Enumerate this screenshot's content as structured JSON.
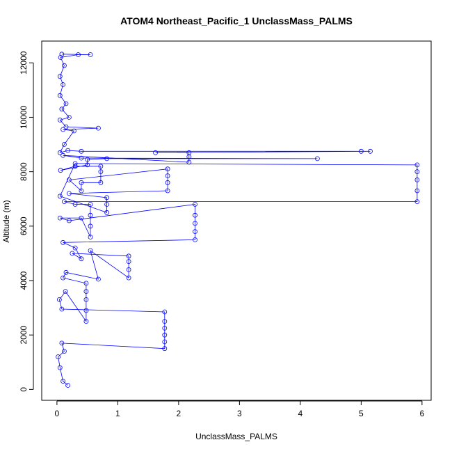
{
  "chart_data": {
    "type": "scatter",
    "title": "ATOM4 Northeast_Pacific_1 UnclassMass_PALMS",
    "xlabel": "UnclassMass_PALMS",
    "ylabel": "Altitude (m)",
    "xlim": [
      -0.25,
      6.15
    ],
    "ylim": [
      -400,
      12800
    ],
    "x_ticks": [
      0,
      1,
      2,
      3,
      4,
      5,
      6
    ],
    "y_ticks": [
      0,
      2000,
      4000,
      6000,
      8000,
      10000,
      12000
    ],
    "grid": false,
    "legend": "none",
    "marker": "open-circle",
    "connected": true,
    "color": "#0000ff",
    "series": [
      {
        "points": [
          [
            0.18,
            150
          ],
          [
            0.1,
            300
          ],
          [
            0.05,
            800
          ],
          [
            0.02,
            1200
          ],
          [
            0.12,
            1400
          ],
          [
            0.08,
            1700
          ],
          [
            1.77,
            1500
          ],
          [
            1.77,
            1750
          ],
          [
            1.77,
            2000
          ],
          [
            1.77,
            2250
          ],
          [
            1.77,
            2500
          ],
          [
            1.77,
            2850
          ],
          [
            0.08,
            2950
          ],
          [
            0.04,
            3300
          ],
          [
            0.14,
            3600
          ],
          [
            0.48,
            2500
          ],
          [
            0.48,
            2900
          ],
          [
            0.48,
            3300
          ],
          [
            0.48,
            3600
          ],
          [
            0.48,
            3900
          ],
          [
            0.1,
            4100
          ],
          [
            0.15,
            4300
          ],
          [
            0.68,
            4050
          ],
          [
            0.55,
            5100
          ],
          [
            1.18,
            4100
          ],
          [
            1.18,
            4400
          ],
          [
            1.18,
            4700
          ],
          [
            1.18,
            4900
          ],
          [
            0.25,
            5000
          ],
          [
            0.4,
            4800
          ],
          [
            0.3,
            5200
          ],
          [
            0.1,
            5400
          ],
          [
            2.27,
            5500
          ],
          [
            2.27,
            5800
          ],
          [
            2.27,
            6100
          ],
          [
            2.27,
            6400
          ],
          [
            2.27,
            6800
          ],
          [
            0.2,
            6200
          ],
          [
            0.05,
            6300
          ],
          [
            0.4,
            6300
          ],
          [
            0.55,
            5600
          ],
          [
            0.55,
            6000
          ],
          [
            0.55,
            6400
          ],
          [
            0.55,
            6800
          ],
          [
            0.3,
            6800
          ],
          [
            0.12,
            6900
          ],
          [
            5.92,
            6900
          ],
          [
            5.92,
            7300
          ],
          [
            5.92,
            7700
          ],
          [
            5.92,
            8000
          ],
          [
            5.92,
            8250
          ],
          [
            0.3,
            8300
          ],
          [
            0.05,
            7100
          ],
          [
            0.82,
            6500
          ],
          [
            0.82,
            6800
          ],
          [
            0.82,
            7050
          ],
          [
            0.2,
            7200
          ],
          [
            1.82,
            7300
          ],
          [
            1.82,
            7600
          ],
          [
            1.82,
            7850
          ],
          [
            1.82,
            8100
          ],
          [
            0.2,
            7700
          ],
          [
            0.4,
            7300
          ],
          [
            0.4,
            7600
          ],
          [
            0.72,
            7600
          ],
          [
            0.72,
            8000
          ],
          [
            0.72,
            8200
          ],
          [
            0.3,
            8200
          ],
          [
            0.06,
            8050
          ],
          [
            0.5,
            8250
          ],
          [
            0.5,
            8450
          ],
          [
            0.82,
            8480
          ],
          [
            4.28,
            8480
          ],
          [
            0.4,
            8500
          ],
          [
            0.1,
            8600
          ],
          [
            2.17,
            8350
          ],
          [
            2.17,
            8550
          ],
          [
            2.17,
            8700
          ],
          [
            1.62,
            8700
          ],
          [
            5.15,
            8750
          ],
          [
            5.0,
            8750
          ],
          [
            0.4,
            8750
          ],
          [
            0.18,
            8780
          ],
          [
            0.05,
            8700
          ],
          [
            0.12,
            9000
          ],
          [
            0.28,
            9500
          ],
          [
            0.1,
            9550
          ],
          [
            0.68,
            9600
          ],
          [
            0.15,
            9650
          ],
          [
            0.05,
            9900
          ],
          [
            0.2,
            10000
          ],
          [
            0.08,
            10300
          ],
          [
            0.15,
            10500
          ],
          [
            0.05,
            10800
          ],
          [
            0.1,
            11200
          ],
          [
            0.05,
            11500
          ],
          [
            0.12,
            11900
          ],
          [
            0.06,
            12200
          ],
          [
            0.35,
            12300
          ],
          [
            0.55,
            12300
          ],
          [
            0.08,
            12320
          ]
        ]
      }
    ]
  }
}
